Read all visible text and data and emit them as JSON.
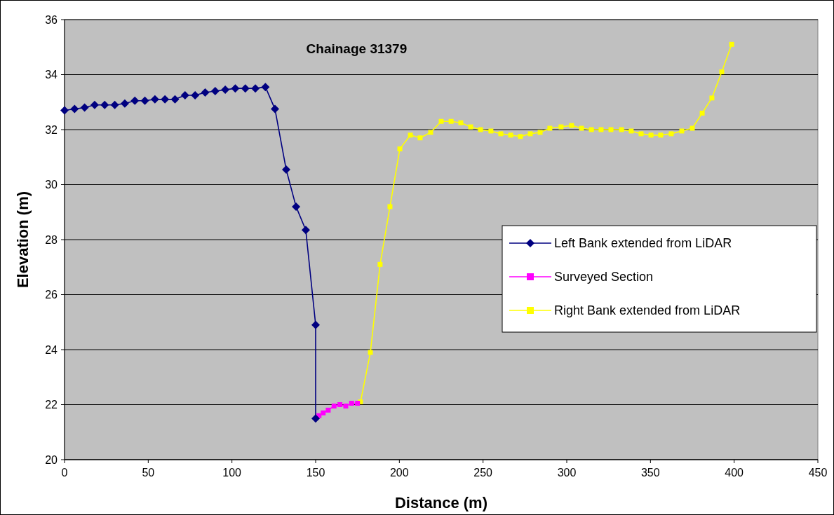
{
  "chart_data": {
    "type": "line",
    "title": "Chainage 31379",
    "xlabel": "Distance (m)",
    "ylabel": "Elevation (m)",
    "xlim": [
      0,
      450
    ],
    "xticks": [
      0,
      50,
      100,
      150,
      200,
      250,
      300,
      350,
      400,
      450
    ],
    "ylim": [
      20,
      36
    ],
    "yticks": [
      20,
      22,
      24,
      26,
      28,
      30,
      32,
      34,
      36
    ],
    "grid": "y",
    "legend": "right",
    "line_style": "solid",
    "series": [
      {
        "name": "Left Bank extended from LiDAR",
        "color": "#000080",
        "marker": "diamond",
        "x": [
          0,
          6,
          12,
          18,
          24,
          30,
          36,
          42,
          48,
          54,
          60,
          66,
          72,
          78,
          84,
          90,
          96,
          102,
          108,
          114,
          120,
          125.7,
          132.4,
          138.3,
          144.1,
          150,
          150
        ],
        "values": [
          32.7,
          32.75,
          32.8,
          32.9,
          32.9,
          32.9,
          32.95,
          33.05,
          33.05,
          33.1,
          33.1,
          33.1,
          33.25,
          33.25,
          33.35,
          33.4,
          33.45,
          33.5,
          33.5,
          33.5,
          33.55,
          32.75,
          30.55,
          29.2,
          28.35,
          24.9,
          21.5
        ]
      },
      {
        "name": "Surveyed Section",
        "color": "#ff00ff",
        "marker": "square",
        "x": [
          152,
          154.5,
          157.5,
          161,
          164.5,
          168,
          171.5,
          175
        ],
        "values": [
          21.6,
          21.7,
          21.8,
          21.95,
          22.0,
          21.95,
          22.05,
          22.05
        ]
      },
      {
        "name": "Right Bank extended from LiDAR",
        "color": "#ffff00",
        "marker": "square",
        "x": [
          176.8,
          182.7,
          188.5,
          194.4,
          200.3,
          206.6,
          212.4,
          218.7,
          225,
          230.9,
          236.7,
          242.6,
          248.5,
          254.7,
          260.6,
          266.5,
          272.3,
          278.2,
          284.1,
          289.9,
          296.6,
          302.9,
          308.8,
          314.7,
          320.5,
          326.4,
          332.7,
          338.5,
          344.4,
          350.3,
          356.1,
          362.4,
          368.7,
          375,
          380.9,
          386.7,
          392.6,
          398.5
        ],
        "values": [
          22.1,
          23.9,
          27.1,
          29.2,
          31.3,
          31.8,
          31.7,
          31.9,
          32.3,
          32.3,
          32.25,
          32.1,
          32.0,
          31.95,
          31.85,
          31.8,
          31.75,
          31.85,
          31.9,
          32.05,
          32.1,
          32.15,
          32.05,
          32.0,
          32.0,
          32.0,
          32.0,
          31.95,
          31.85,
          31.8,
          31.8,
          31.85,
          31.95,
          32.05,
          32.6,
          33.15,
          34.1,
          35.1
        ]
      }
    ]
  }
}
